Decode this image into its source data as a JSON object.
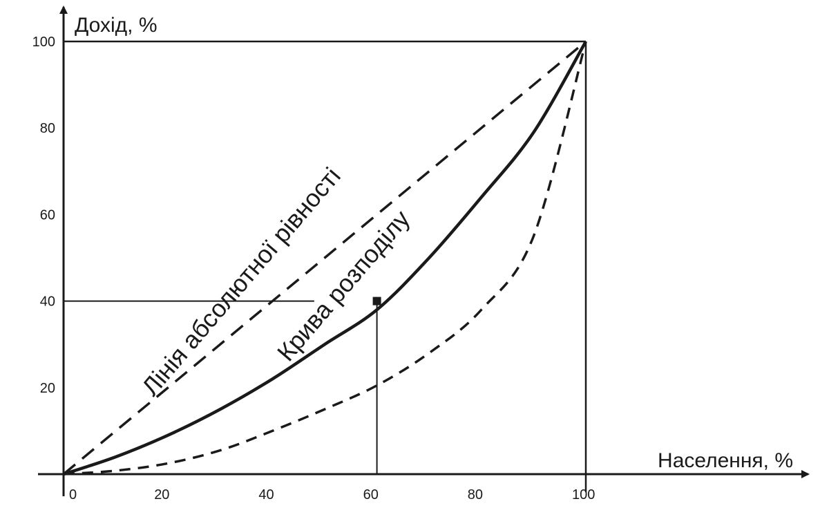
{
  "chart_data": {
    "type": "line",
    "ylabel": "Дохід, %",
    "xlabel": "Населення, %",
    "xlim": [
      0,
      100
    ],
    "ylim": [
      0,
      100
    ],
    "x_ticks": [
      0,
      20,
      40,
      60,
      80,
      100
    ],
    "y_ticks": [
      20,
      40,
      60,
      80,
      100
    ],
    "grid": false,
    "series": [
      {
        "name": "Лінія абсолютної рівності",
        "style": "dashed",
        "x": [
          0,
          100
        ],
        "y": [
          0,
          100
        ]
      },
      {
        "name": "Крива розподілу",
        "style": "solid",
        "x": [
          0,
          10,
          20,
          30,
          40,
          50,
          60,
          70,
          80,
          90,
          100
        ],
        "y": [
          0,
          4,
          9,
          15,
          22,
          30,
          38,
          50,
          64,
          79,
          100
        ]
      },
      {
        "name": "",
        "style": "dashed",
        "x": [
          0,
          10,
          20,
          30,
          40,
          50,
          60,
          70,
          80,
          90,
          100
        ],
        "y": [
          0,
          0.8,
          2.5,
          5.5,
          10,
          15,
          20.5,
          28,
          38,
          55,
          100
        ]
      }
    ],
    "annotations": {
      "marked_point": {
        "x": 60,
        "y": 40
      }
    }
  }
}
